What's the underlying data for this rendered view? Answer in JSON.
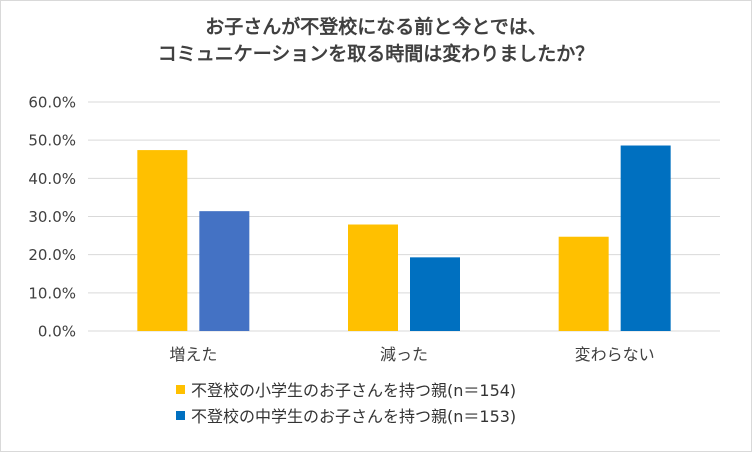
{
  "chart_data": {
    "type": "bar",
    "title_lines": [
      "お子さんが不登校になる前と今とでは、",
      "コミュニケーションを取る時間は変わりましたか？"
    ],
    "categories": [
      "増えた",
      "減った",
      "変わらない"
    ],
    "series": [
      {
        "name": "不登校の小学生のお子さんを持つ親(n＝154)",
        "values": [
          47.4,
          27.9,
          24.7
        ],
        "color": "#FFC000"
      },
      {
        "name": "不登校の中学生のお子さんを持つ親(n＝153)",
        "values": [
          31.4,
          19.3,
          48.6
        ],
        "colors": [
          "#4472C4",
          "#0070C0",
          "#0070C0"
        ],
        "color": "#0070C0"
      }
    ],
    "y_ticks": [
      "0.0%",
      "10.0%",
      "20.0%",
      "30.0%",
      "40.0%",
      "50.0%",
      "60.0%"
    ],
    "ylim": [
      0,
      60
    ],
    "grid": true,
    "legend_position": "bottom"
  }
}
